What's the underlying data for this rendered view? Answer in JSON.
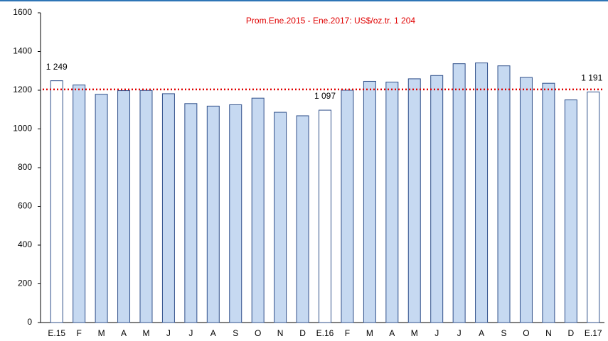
{
  "chart_data": {
    "type": "bar",
    "categories": [
      "E.15",
      "F",
      "M",
      "A",
      "M",
      "J",
      "J",
      "A",
      "S",
      "O",
      "N",
      "D",
      "E.16",
      "F",
      "M",
      "A",
      "M",
      "J",
      "J",
      "A",
      "S",
      "O",
      "N",
      "D",
      "E.17"
    ],
    "values": [
      1249,
      1227,
      1179,
      1198,
      1199,
      1182,
      1131,
      1118,
      1125,
      1159,
      1086,
      1068,
      1097,
      1200,
      1246,
      1242,
      1259,
      1276,
      1337,
      1341,
      1326,
      1266,
      1236,
      1150,
      1191
    ],
    "value_labels": [
      "1 249",
      null,
      null,
      null,
      null,
      null,
      null,
      null,
      null,
      null,
      null,
      null,
      "1 097",
      null,
      null,
      null,
      null,
      null,
      null,
      null,
      null,
      null,
      null,
      null,
      "1 191"
    ],
    "colors": [
      "#ffffff",
      "#c6d9f1",
      "#c6d9f1",
      "#c6d9f1",
      "#c6d9f1",
      "#c6d9f1",
      "#c6d9f1",
      "#c6d9f1",
      "#c6d9f1",
      "#c6d9f1",
      "#c6d9f1",
      "#c6d9f1",
      "#ffffff",
      "#c6d9f1",
      "#c6d9f1",
      "#c6d9f1",
      "#c6d9f1",
      "#c6d9f1",
      "#c6d9f1",
      "#c6d9f1",
      "#c6d9f1",
      "#c6d9f1",
      "#c6d9f1",
      "#c6d9f1",
      "#ffffff"
    ],
    "edge_color": "#2f4f8a",
    "reference_line": {
      "value": 1204,
      "label": "Prom.Ene.2015 - Ene.2017: US$/oz.tr. 1 204",
      "color": "#e00000"
    },
    "ylim": [
      0,
      1600
    ],
    "yticks": [
      0,
      200,
      400,
      600,
      800,
      1000,
      1200,
      1400,
      1600
    ],
    "grid": false
  }
}
